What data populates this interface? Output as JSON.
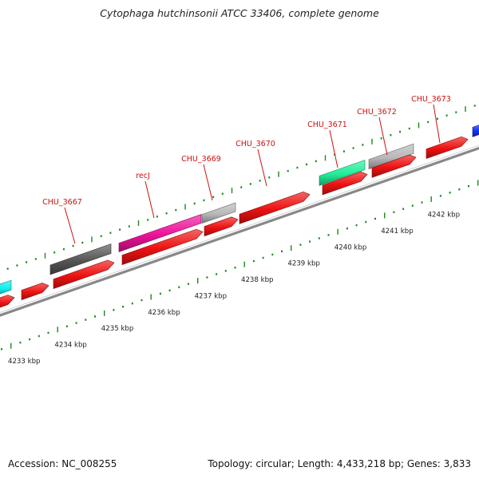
{
  "title": "Cytophaga hutchinsonii ATCC 33406, complete genome",
  "footer": {
    "accession": "Accession: NC_008255",
    "summary": "Topology: circular; Length: 4,433,218 bp; Genes: 3,833"
  },
  "colors": {
    "backbone": "#888888",
    "tick": "#1a8a1a",
    "gene_label": "#cc1111",
    "scale_label": "#222222",
    "cds_forward": "#ee1111",
    "feature_pink": "#ee1199",
    "feature_dark": "#555555",
    "feature_light": "#b8b8b8",
    "feature_teal": "#22ee99",
    "feature_cyan": "#11eeee",
    "feature_blue": "#1133ee"
  },
  "scale_labels": [
    "4233 kbp",
    "4234 kbp",
    "4235 kbp",
    "4236 kbp",
    "4237 kbp",
    "4238 kbp",
    "4239 kbp",
    "4240 kbp",
    "4241 kbp",
    "4242 kbp"
  ],
  "gene_labels": [
    "CHU_3667",
    "recJ",
    "CHU_3669",
    "CHU_3670",
    "CHU_3671",
    "CHU_3672",
    "CHU_3673"
  ]
}
